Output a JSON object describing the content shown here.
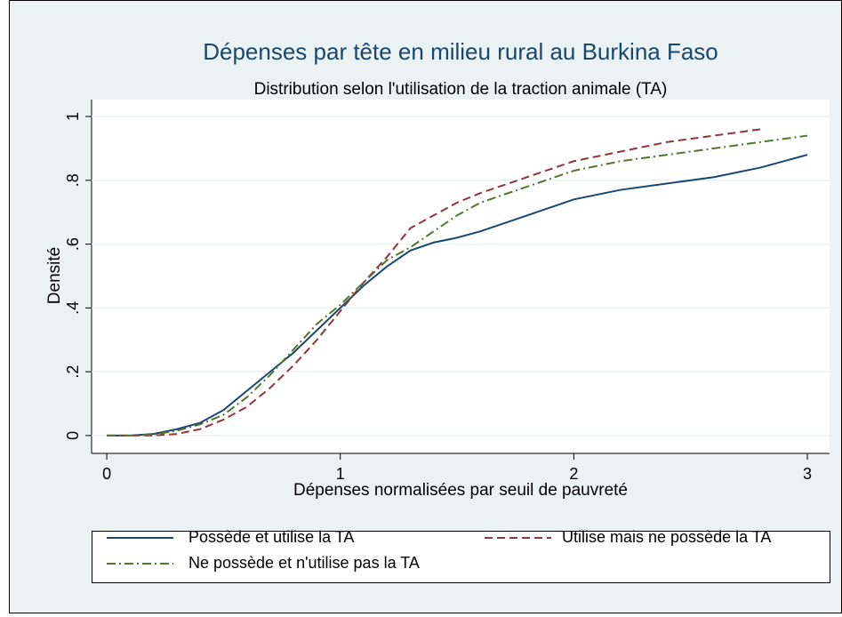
{
  "chart_data": {
    "type": "line",
    "title": "Dépenses par tête en milieu rural au Burkina Faso",
    "subtitle": "Distribution selon l'utilisation de la traction animale (TA)",
    "x_label": "Dépenses normalisées par seuil de pauvreté",
    "y_label": "Densité",
    "x": [
      0,
      0.1,
      0.2,
      0.3,
      0.4,
      0.5,
      0.6,
      0.7,
      0.8,
      0.9,
      1.0,
      1.1,
      1.2,
      1.3,
      1.4,
      1.5,
      1.6,
      1.8,
      2.0,
      2.2,
      2.4,
      2.6,
      2.8,
      3.0
    ],
    "series": [
      {
        "name": "Possède et utilise la TA",
        "color": "#1a476f",
        "dash": "solid",
        "values": [
          0,
          0,
          0.005,
          0.02,
          0.04,
          0.08,
          0.14,
          0.2,
          0.26,
          0.33,
          0.4,
          0.47,
          0.53,
          0.58,
          0.605,
          0.62,
          0.64,
          0.69,
          0.74,
          0.77,
          0.79,
          0.81,
          0.84,
          0.88
        ]
      },
      {
        "name": "Utilise mais ne possède la TA",
        "color": "#90353b",
        "dash": "dashed",
        "values": [
          0,
          0,
          0,
          0.005,
          0.02,
          0.05,
          0.09,
          0.15,
          0.22,
          0.3,
          0.39,
          0.48,
          0.56,
          0.65,
          0.69,
          0.73,
          0.76,
          0.81,
          0.86,
          0.89,
          0.92,
          0.94,
          0.96,
          null
        ]
      },
      {
        "name": "Ne possède et n'utilise pas la TA",
        "color": "#55752f",
        "dash": "dashdot",
        "values": [
          0,
          0,
          0.003,
          0.015,
          0.035,
          0.065,
          0.12,
          0.19,
          0.27,
          0.35,
          0.41,
          0.48,
          0.55,
          0.59,
          0.64,
          0.69,
          0.73,
          0.78,
          0.83,
          0.86,
          0.88,
          0.9,
          0.92,
          0.94
        ]
      }
    ],
    "xlim": [
      -0.065,
      3.095
    ],
    "xticks": [
      0,
      1,
      2,
      3
    ],
    "ylim": [
      -0.056,
      1.053
    ],
    "yticks": [
      0,
      {
        "value": 0.2,
        "label": ".2"
      },
      {
        "value": 0.4,
        "label": ".4"
      },
      {
        "value": 0.6,
        "label": ".6"
      },
      {
        "value": 0.8,
        "label": ".8"
      },
      1
    ],
    "grid": true
  }
}
